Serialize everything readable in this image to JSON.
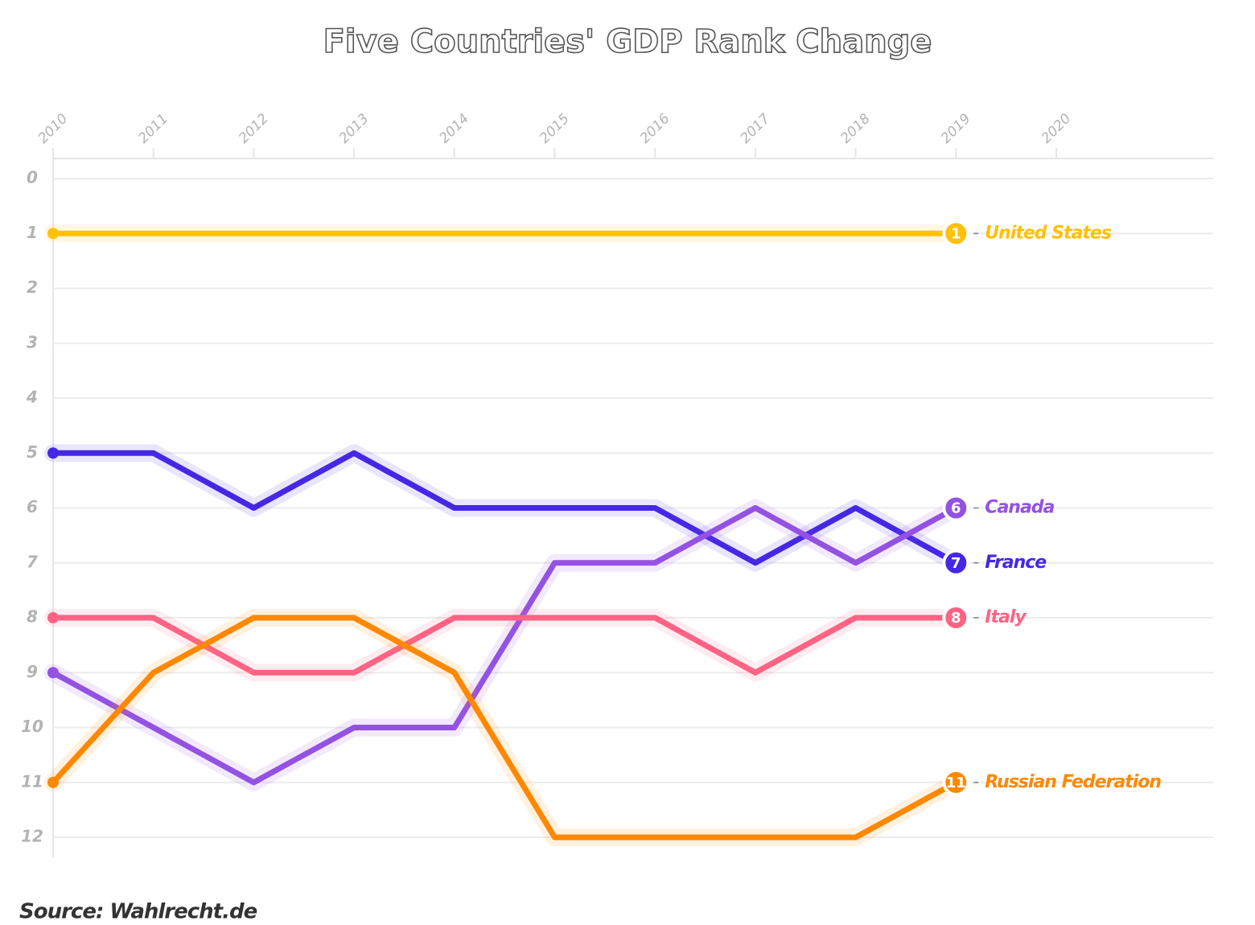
{
  "chart_data": {
    "type": "line",
    "title": "Five Countries' GDP Rank Change",
    "annotation": "Source: Wahlrecht.de",
    "x": [
      2010,
      2011,
      2012,
      2013,
      2014,
      2015,
      2016,
      2017,
      2018,
      2019
    ],
    "xlim": [
      2010,
      2020
    ],
    "xticks": [
      2010,
      2011,
      2012,
      2013,
      2014,
      2015,
      2016,
      2017,
      2018,
      2019,
      2020
    ],
    "ylim": [
      0,
      12
    ],
    "yticks": [
      0,
      1,
      2,
      3,
      4,
      5,
      6,
      7,
      8,
      9,
      10,
      11,
      12
    ],
    "y_inverted": true,
    "grid": true,
    "series": [
      {
        "name": "United States",
        "color": "#ffc107",
        "values": [
          1,
          1,
          1,
          1,
          1,
          1,
          1,
          1,
          1,
          1
        ]
      },
      {
        "name": "France",
        "color": "#4527e6",
        "values": [
          5,
          5,
          6,
          5,
          6,
          6,
          6,
          7,
          6,
          7
        ]
      },
      {
        "name": "Canada",
        "color": "#9452e3",
        "values": [
          9,
          10,
          11,
          10,
          10,
          7,
          7,
          6,
          7,
          6
        ]
      },
      {
        "name": "Italy",
        "color": "#ff6384",
        "values": [
          8,
          8,
          9,
          9,
          8,
          8,
          8,
          9,
          8,
          8
        ]
      },
      {
        "name": "Russian Federation",
        "color": "#ff8800",
        "values": [
          11,
          9,
          8,
          8,
          9,
          12,
          12,
          12,
          12,
          11
        ]
      }
    ]
  }
}
